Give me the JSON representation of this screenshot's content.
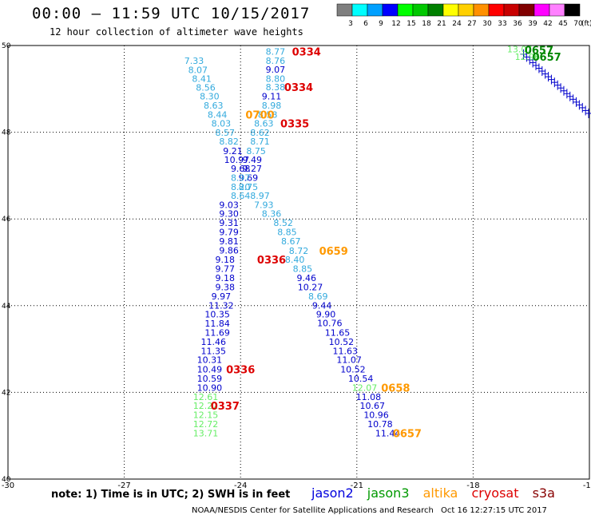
{
  "header": {
    "title": "00:00 – 11:59 UTC 10/15/2017",
    "subtitle": "12 hour collection of altimeter wave heights"
  },
  "legend": {
    "unit": "(ft)",
    "bins": [
      {
        "label": "3",
        "color": "#7f7f7f"
      },
      {
        "label": "6",
        "color": "#00ffff"
      },
      {
        "label": "9",
        "color": "#00a0ff"
      },
      {
        "label": "12",
        "color": "#0000ff"
      },
      {
        "label": "15",
        "color": "#00ff00"
      },
      {
        "label": "18",
        "color": "#00c800"
      },
      {
        "label": "21",
        "color": "#008000"
      },
      {
        "label": "24",
        "color": "#ffff00"
      },
      {
        "label": "27",
        "color": "#ffd000"
      },
      {
        "label": "30",
        "color": "#ff9000"
      },
      {
        "label": "33",
        "color": "#ff0000"
      },
      {
        "label": "36",
        "color": "#c80000"
      },
      {
        "label": "39",
        "color": "#800000"
      },
      {
        "label": "42",
        "color": "#ff00ff"
      },
      {
        "label": "45",
        "color": "#ff80ff"
      },
      {
        "label": "70",
        "color": "#000000"
      }
    ]
  },
  "footer": {
    "note": "note: 1) Time is in UTC; 2) SWH is in feet",
    "satellites": [
      {
        "name": "jason2",
        "color": "#0000dd"
      },
      {
        "name": "jason3",
        "color": "#009900"
      },
      {
        "name": "altika",
        "color": "#ff9900"
      },
      {
        "name": "cryosat",
        "color": "#dd0000"
      },
      {
        "name": "s3a",
        "color": "#880000"
      }
    ],
    "credit": "NOAA/NESDIS Center for Satellite Applications and Research",
    "timestamp": "Oct 16 12:27:15 UTC 2017"
  },
  "colors": {
    "lightblue": "#33aadd",
    "blue": "#0000cc",
    "lightgreen": "#66ee66",
    "darkgreen": "#008800",
    "red": "#dd0000",
    "orange": "#ff9900"
  },
  "map": {
    "lon_range": [
      -30,
      -15
    ],
    "lat_range": [
      40,
      50
    ],
    "lon_ticks": [
      -30,
      -27,
      -24,
      -21,
      -18,
      -15
    ],
    "lat_ticks": [
      40,
      42,
      44,
      46,
      48,
      50
    ],
    "lon_tick_labels": [
      "-30",
      "-27",
      "-24",
      "-21",
      "-18",
      "-15"
    ],
    "lat_tick_labels": [
      "40",
      "42",
      "44",
      "46",
      "48",
      "50"
    ],
    "swh": [
      {
        "lon": -23.1,
        "lat": 49.86,
        "v": "8.77",
        "c": "lightblue"
      },
      {
        "lon": -23.1,
        "lat": 49.65,
        "v": "8.76",
        "c": "lightblue"
      },
      {
        "lon": -23.1,
        "lat": 49.45,
        "v": "9.07",
        "c": "blue"
      },
      {
        "lon": -23.1,
        "lat": 49.24,
        "v": "8.80",
        "c": "lightblue"
      },
      {
        "lon": -23.1,
        "lat": 49.04,
        "v": "8.38",
        "c": "lightblue"
      },
      {
        "lon": -23.2,
        "lat": 48.83,
        "v": "9.11",
        "c": "blue"
      },
      {
        "lon": -23.2,
        "lat": 48.62,
        "v": "8.98",
        "c": "lightblue"
      },
      {
        "lon": -23.3,
        "lat": 48.41,
        "v": "8.58",
        "c": "lightblue"
      },
      {
        "lon": -23.4,
        "lat": 48.2,
        "v": "8.63",
        "c": "lightblue"
      },
      {
        "lon": -23.5,
        "lat": 47.99,
        "v": "8.62",
        "c": "lightblue"
      },
      {
        "lon": -23.5,
        "lat": 47.79,
        "v": "8.71",
        "c": "lightblue"
      },
      {
        "lon": -23.6,
        "lat": 47.57,
        "v": "8.75",
        "c": "lightblue"
      },
      {
        "lon": -23.7,
        "lat": 47.37,
        "v": "9.49",
        "c": "blue"
      },
      {
        "lon": -23.7,
        "lat": 47.16,
        "v": "9.27",
        "c": "blue"
      },
      {
        "lon": -23.8,
        "lat": 46.95,
        "v": "9.69",
        "c": "blue"
      },
      {
        "lon": -23.8,
        "lat": 46.74,
        "v": "8.75",
        "c": "lightblue"
      },
      {
        "lon": -23.5,
        "lat": 46.54,
        "v": "8.97",
        "c": "lightblue"
      },
      {
        "lon": -23.4,
        "lat": 46.33,
        "v": "7.93",
        "c": "lightblue"
      },
      {
        "lon": -23.2,
        "lat": 46.12,
        "v": "8.36",
        "c": "lightblue"
      },
      {
        "lon": -22.9,
        "lat": 45.91,
        "v": "8.52",
        "c": "lightblue"
      },
      {
        "lon": -22.8,
        "lat": 45.7,
        "v": "8.85",
        "c": "lightblue"
      },
      {
        "lon": -22.7,
        "lat": 45.49,
        "v": "8.67",
        "c": "lightblue"
      },
      {
        "lon": -22.5,
        "lat": 45.27,
        "v": "8.72",
        "c": "lightblue"
      },
      {
        "lon": -22.6,
        "lat": 45.06,
        "v": "8.40",
        "c": "lightblue"
      },
      {
        "lon": -22.4,
        "lat": 44.85,
        "v": "8.85",
        "c": "lightblue"
      },
      {
        "lon": -22.3,
        "lat": 44.64,
        "v": "9.46",
        "c": "blue"
      },
      {
        "lon": -22.2,
        "lat": 44.43,
        "v": "10.27",
        "c": "blue"
      },
      {
        "lon": -22.0,
        "lat": 44.22,
        "v": "8.69",
        "c": "lightblue"
      },
      {
        "lon": -21.9,
        "lat": 44.01,
        "v": "9.44",
        "c": "blue"
      },
      {
        "lon": -21.8,
        "lat": 43.8,
        "v": "9.90",
        "c": "blue"
      },
      {
        "lon": -21.7,
        "lat": 43.6,
        "v": "10.76",
        "c": "blue"
      },
      {
        "lon": -21.5,
        "lat": 43.38,
        "v": "11.65",
        "c": "blue"
      },
      {
        "lon": -21.4,
        "lat": 43.17,
        "v": "10.52",
        "c": "blue"
      },
      {
        "lon": -21.3,
        "lat": 42.96,
        "v": "11.63",
        "c": "blue"
      },
      {
        "lon": -21.2,
        "lat": 42.75,
        "v": "11.07",
        "c": "blue"
      },
      {
        "lon": -21.1,
        "lat": 42.53,
        "v": "10.52",
        "c": "blue"
      },
      {
        "lon": -20.9,
        "lat": 42.32,
        "v": "10.54",
        "c": "blue"
      },
      {
        "lon": -20.8,
        "lat": 42.11,
        "v": "12.07",
        "c": "lightgreen"
      },
      {
        "lon": -20.7,
        "lat": 41.9,
        "v": "11.08",
        "c": "blue"
      },
      {
        "lon": -20.6,
        "lat": 41.69,
        "v": "10.67",
        "c": "blue"
      },
      {
        "lon": -20.5,
        "lat": 41.48,
        "v": "10.96",
        "c": "blue"
      },
      {
        "lon": -20.4,
        "lat": 41.27,
        "v": "10.78",
        "c": "blue"
      },
      {
        "lon": -20.2,
        "lat": 41.06,
        "v": "11.44",
        "c": "blue"
      },
      {
        "lon": -25.2,
        "lat": 49.65,
        "v": "7.33",
        "c": "lightblue"
      },
      {
        "lon": -25.1,
        "lat": 49.44,
        "v": "8.07",
        "c": "lightblue"
      },
      {
        "lon": -25.0,
        "lat": 49.24,
        "v": "8.41",
        "c": "lightblue"
      },
      {
        "lon": -24.9,
        "lat": 49.03,
        "v": "8.56",
        "c": "lightblue"
      },
      {
        "lon": -24.8,
        "lat": 48.83,
        "v": "8.30",
        "c": "lightblue"
      },
      {
        "lon": -24.7,
        "lat": 48.62,
        "v": "8.63",
        "c": "lightblue"
      },
      {
        "lon": -24.6,
        "lat": 48.41,
        "v": "8.44",
        "c": "lightblue"
      },
      {
        "lon": -24.5,
        "lat": 48.2,
        "v": "8.03",
        "c": "lightblue"
      },
      {
        "lon": -24.4,
        "lat": 47.99,
        "v": "8.57",
        "c": "lightblue"
      },
      {
        "lon": -24.3,
        "lat": 47.79,
        "v": "8.82",
        "c": "lightblue"
      },
      {
        "lon": -24.2,
        "lat": 47.57,
        "v": "9.21",
        "c": "blue"
      },
      {
        "lon": -24.1,
        "lat": 47.37,
        "v": "10.97",
        "c": "blue"
      },
      {
        "lon": -24.0,
        "lat": 47.16,
        "v": "9.68",
        "c": "blue"
      },
      {
        "lon": -24.0,
        "lat": 46.95,
        "v": "8.97",
        "c": "lightblue"
      },
      {
        "lon": -24.0,
        "lat": 46.74,
        "v": "8.20",
        "c": "lightblue"
      },
      {
        "lon": -24.0,
        "lat": 46.54,
        "v": "8.64",
        "c": "lightblue"
      },
      {
        "lon": -24.3,
        "lat": 46.33,
        "v": "9.03",
        "c": "blue"
      },
      {
        "lon": -24.3,
        "lat": 46.12,
        "v": "9.30",
        "c": "blue"
      },
      {
        "lon": -24.3,
        "lat": 45.91,
        "v": "9.31",
        "c": "blue"
      },
      {
        "lon": -24.3,
        "lat": 45.7,
        "v": "9.79",
        "c": "blue"
      },
      {
        "lon": -24.3,
        "lat": 45.49,
        "v": "9.81",
        "c": "blue"
      },
      {
        "lon": -24.3,
        "lat": 45.28,
        "v": "9.86",
        "c": "blue"
      },
      {
        "lon": -24.4,
        "lat": 45.06,
        "v": "9.18",
        "c": "blue"
      },
      {
        "lon": -24.4,
        "lat": 44.85,
        "v": "9.77",
        "c": "blue"
      },
      {
        "lon": -24.4,
        "lat": 44.64,
        "v": "9.18",
        "c": "blue"
      },
      {
        "lon": -24.4,
        "lat": 44.43,
        "v": "9.38",
        "c": "blue"
      },
      {
        "lon": -24.5,
        "lat": 44.22,
        "v": "9.97",
        "c": "blue"
      },
      {
        "lon": -24.5,
        "lat": 44.01,
        "v": "11.32",
        "c": "blue"
      },
      {
        "lon": -24.6,
        "lat": 43.8,
        "v": "10.35",
        "c": "blue"
      },
      {
        "lon": -24.6,
        "lat": 43.59,
        "v": "11.84",
        "c": "blue"
      },
      {
        "lon": -24.6,
        "lat": 43.38,
        "v": "11.69",
        "c": "blue"
      },
      {
        "lon": -24.7,
        "lat": 43.17,
        "v": "11.46",
        "c": "blue"
      },
      {
        "lon": -24.7,
        "lat": 42.96,
        "v": "11.35",
        "c": "blue"
      },
      {
        "lon": -24.8,
        "lat": 42.75,
        "v": "10.31",
        "c": "blue"
      },
      {
        "lon": -24.8,
        "lat": 42.53,
        "v": "10.49",
        "c": "blue"
      },
      {
        "lon": -24.8,
        "lat": 42.32,
        "v": "10.59",
        "c": "blue"
      },
      {
        "lon": -24.8,
        "lat": 42.11,
        "v": "10.90",
        "c": "blue"
      },
      {
        "lon": -24.9,
        "lat": 41.9,
        "v": "12.61",
        "c": "lightgreen"
      },
      {
        "lon": -24.9,
        "lat": 41.69,
        "v": "12.22",
        "c": "lightgreen"
      },
      {
        "lon": -24.9,
        "lat": 41.48,
        "v": "12.15",
        "c": "lightgreen"
      },
      {
        "lon": -24.9,
        "lat": 41.27,
        "v": "12.72",
        "c": "lightgreen"
      },
      {
        "lon": -24.9,
        "lat": 41.06,
        "v": "13.71",
        "c": "lightgreen"
      }
    ],
    "pass_times": [
      {
        "lon": -22.3,
        "lat": 49.86,
        "v": "0334",
        "c": "red"
      },
      {
        "lon": -22.5,
        "lat": 49.04,
        "v": "0334",
        "c": "red"
      },
      {
        "lon": -22.6,
        "lat": 48.2,
        "v": "0335",
        "c": "red"
      },
      {
        "lon": -23.5,
        "lat": 48.41,
        "v": "0700",
        "c": "orange"
      },
      {
        "lon": -21.6,
        "lat": 45.27,
        "v": "0659",
        "c": "orange"
      },
      {
        "lon": -23.2,
        "lat": 45.06,
        "v": "0336",
        "c": "red"
      },
      {
        "lon": -24.0,
        "lat": 42.53,
        "v": "0336",
        "c": "red"
      },
      {
        "lon": -24.4,
        "lat": 41.69,
        "v": "0337",
        "c": "red"
      },
      {
        "lon": -20.0,
        "lat": 42.11,
        "v": "0658",
        "c": "orange"
      },
      {
        "lon": -19.7,
        "lat": 41.06,
        "v": "0657",
        "c": "orange"
      },
      {
        "lon": -16.3,
        "lat": 49.9,
        "v": "0657",
        "c": "darkgreen"
      },
      {
        "lon": -16.1,
        "lat": 49.74,
        "v": "0657",
        "c": "darkgreen"
      }
    ],
    "corner_swh": [
      {
        "lon": -16.8,
        "lat": 49.92,
        "v": "13.07",
        "c": "lightgreen"
      },
      {
        "lon": -16.6,
        "lat": 49.74,
        "v": "12.96",
        "c": "lightgreen"
      }
    ]
  }
}
